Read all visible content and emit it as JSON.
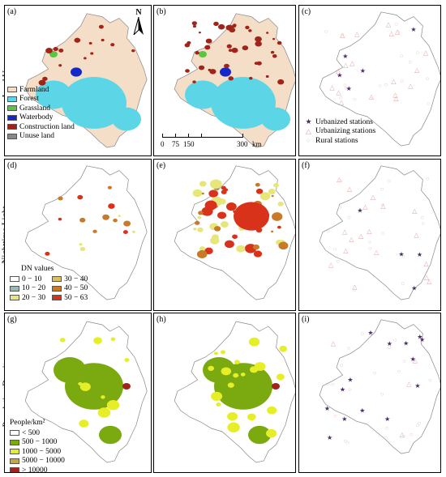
{
  "row_labels": [
    "Land Use",
    "Nighttime Light",
    "Population Density"
  ],
  "panels": [
    "(a)",
    "(b)",
    "(c)",
    "(d)",
    "(e)",
    "(f)",
    "(g)",
    "(h)",
    "(i)"
  ],
  "north_label": "N",
  "scale_bar": {
    "ticks": [
      "0",
      "75",
      "150",
      "300"
    ],
    "unit": "km"
  },
  "land_use_legend": [
    {
      "label": "Farmland",
      "color": "#f5dec8"
    },
    {
      "label": "Forest",
      "color": "#5cd6e6"
    },
    {
      "label": "Grassland",
      "color": "#59c542"
    },
    {
      "label": "Waterbody",
      "color": "#1428c8"
    },
    {
      "label": "Construction land",
      "color": "#a0241a"
    },
    {
      "label": "Unuse land",
      "color": "#888888"
    }
  ],
  "station_legend": [
    {
      "label": "Urbanized stations",
      "icon": "star",
      "color": "#4a2a6a"
    },
    {
      "label": "Urbanizing stations",
      "icon": "triangle",
      "color": "#e0a0a0"
    },
    {
      "label": "Rural stations",
      "icon": "circle",
      "color": "#e8c8c8"
    }
  ],
  "dn_legend": {
    "title": "DN values",
    "items": [
      {
        "label": "0 − 10",
        "color": "#ffffff"
      },
      {
        "label": "30 − 40",
        "color": "#d8c060"
      },
      {
        "label": "10 − 20",
        "color": "#9ab8b0"
      },
      {
        "label": "40 − 50",
        "color": "#c87a2a"
      },
      {
        "label": "20 − 30",
        "color": "#e6e67a"
      },
      {
        "label": "50 − 63",
        "color": "#d8321a"
      }
    ]
  },
  "pop_legend": {
    "title": "People/km²",
    "items": [
      {
        "label": "< 500",
        "color": "#ffffff"
      },
      {
        "label": "500 − 1000",
        "color": "#7aaa10"
      },
      {
        "label": "1000 − 5000",
        "color": "#e6ee28"
      },
      {
        "label": "5000 − 10000",
        "color": "#c8a838"
      },
      {
        "label": "> 10000",
        "color": "#a0241a"
      }
    ]
  }
}
